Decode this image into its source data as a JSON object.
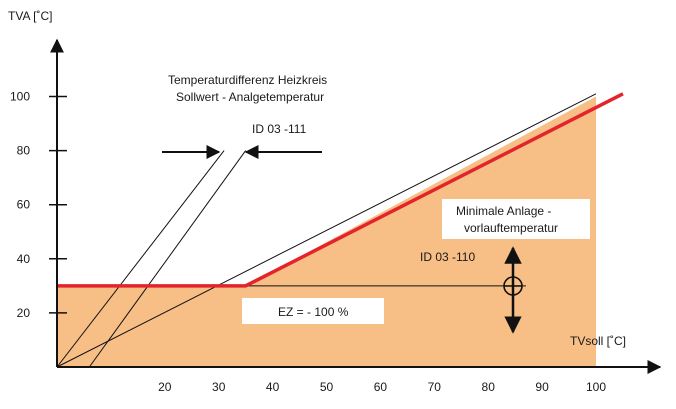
{
  "colors": {
    "fill": "#f7be86",
    "red": "#e3242b",
    "line": "#111111",
    "box": "#ffffff"
  },
  "chart_data": {
    "type": "line",
    "title": "",
    "xlabel": "TVsoll  [˚C]",
    "ylabel": "TVA [˚C]",
    "xlim": [
      0,
      100
    ],
    "ylim": [
      0,
      100
    ],
    "x_ticks": [
      20,
      30,
      40,
      50,
      60,
      70,
      80,
      90,
      100
    ],
    "y_ticks": [
      20,
      40,
      60,
      80,
      100
    ],
    "filled_area": {
      "color": "#f7be86",
      "points": [
        [
          0,
          30
        ],
        [
          35,
          30
        ],
        [
          100,
          100
        ],
        [
          100,
          0
        ],
        [
          0,
          0
        ]
      ]
    },
    "series": [
      {
        "color": "#e3242b",
        "points": [
          [
            0,
            30
          ],
          [
            35,
            30
          ],
          [
            105,
            101
          ]
        ]
      },
      {
        "color": "#111111",
        "points": [
          [
            0,
            0
          ],
          [
            100,
            101
          ]
        ]
      },
      {
        "color": "#111111",
        "points": [
          [
            0,
            0
          ],
          [
            31,
            80
          ]
        ]
      },
      {
        "color": "#111111",
        "points": [
          [
            6,
            0
          ],
          [
            35,
            80
          ]
        ]
      },
      {
        "color": "#111111",
        "points": [
          [
            0,
            30
          ],
          [
            87,
            30
          ]
        ]
      }
    ],
    "annotations": {
      "temperaturdifferenz": {
        "line1": "Temperaturdifferenz Heizkreis",
        "line2": "Sollwert  - Analgetemperatur"
      },
      "id_111": "ID 03 -111",
      "minimale": {
        "line1": "Minimale Anlage -",
        "line2": "vorlauftemperatur"
      },
      "id_110": "ID 03 -110",
      "ez": "EZ =  - 100 %"
    }
  }
}
